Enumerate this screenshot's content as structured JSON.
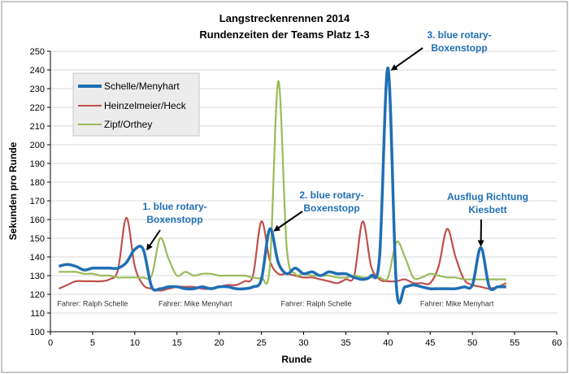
{
  "chart_data": {
    "type": "line",
    "title": "Langstreckenrennen 2014",
    "subtitle": "Rundenzeiten der Teams Platz 1-3",
    "xlabel": "Runde",
    "ylabel": "Sekunden pro Runde",
    "xlim": [
      0,
      60
    ],
    "ylim": [
      100,
      250
    ],
    "xticks": [
      0,
      5,
      10,
      15,
      20,
      25,
      30,
      35,
      40,
      45,
      50,
      55,
      60
    ],
    "yticks": [
      100,
      110,
      120,
      130,
      140,
      150,
      160,
      170,
      180,
      190,
      200,
      210,
      220,
      230,
      240,
      250
    ],
    "grid": "horizontal",
    "legend_position": "top-left",
    "series": [
      {
        "name": "Schelle/Menyhart",
        "color": "#1f6fb5",
        "x": [
          1,
          2,
          3,
          4,
          5,
          6,
          7,
          8,
          9,
          10,
          11,
          12,
          13,
          14,
          15,
          16,
          17,
          18,
          19,
          20,
          21,
          22,
          23,
          24,
          25,
          26,
          27,
          28,
          29,
          30,
          31,
          32,
          33,
          34,
          35,
          36,
          37,
          38,
          39,
          40,
          41,
          42,
          43,
          44,
          45,
          46,
          47,
          48,
          49,
          50,
          51,
          52,
          53,
          54
        ],
        "values": [
          135,
          136,
          135,
          133,
          134,
          134,
          134,
          134,
          137,
          144,
          144,
          124,
          123,
          124,
          124,
          123,
          123,
          124,
          123,
          124,
          124,
          123,
          123,
          124,
          128,
          155,
          137,
          131,
          134,
          131,
          132,
          130,
          132,
          131,
          131,
          129,
          128,
          130,
          140,
          241,
          124,
          124,
          125,
          124,
          123,
          123,
          123,
          123,
          124,
          125,
          145,
          124,
          124,
          124
        ]
      },
      {
        "name": "Heinzelmeier/Heck",
        "color": "#c0504d",
        "x": [
          1,
          2,
          3,
          4,
          5,
          6,
          7,
          8,
          9,
          10,
          11,
          12,
          13,
          14,
          15,
          16,
          17,
          18,
          19,
          20,
          21,
          22,
          23,
          24,
          25,
          26,
          27,
          28,
          29,
          30,
          31,
          32,
          33,
          34,
          35,
          36,
          37,
          38,
          39,
          40,
          41,
          42,
          43,
          44,
          45,
          46,
          47,
          48,
          49,
          50,
          51,
          52,
          53,
          54
        ],
        "values": [
          123,
          125,
          127,
          127,
          127,
          127,
          128,
          133,
          161,
          135,
          125,
          123,
          122,
          123,
          124,
          124,
          124,
          123,
          123,
          124,
          125,
          125,
          127,
          130,
          159,
          138,
          131,
          131,
          130,
          129,
          129,
          128,
          127,
          126,
          128,
          130,
          159,
          135,
          128,
          127,
          127,
          128,
          126,
          126,
          126,
          135,
          155,
          140,
          128,
          125,
          124,
          123,
          124,
          126
        ]
      },
      {
        "name": "Zipf/Orthey",
        "color": "#9bbb59",
        "x": [
          1,
          2,
          3,
          4,
          5,
          6,
          7,
          8,
          9,
          10,
          11,
          12,
          13,
          14,
          15,
          16,
          17,
          18,
          19,
          20,
          21,
          22,
          23,
          24,
          25,
          26,
          27,
          28,
          29,
          30,
          31,
          32,
          33,
          34,
          35,
          36,
          37,
          38,
          39,
          40,
          41,
          42,
          43,
          44,
          45,
          46,
          47,
          48,
          49,
          50,
          51,
          52,
          53,
          54
        ],
        "values": [
          132,
          132,
          132,
          131,
          131,
          130,
          130,
          129,
          129,
          129,
          129,
          130,
          150,
          139,
          130,
          132,
          130,
          131,
          131,
          130,
          130,
          130,
          130,
          129,
          129,
          135,
          234,
          145,
          131,
          131,
          130,
          130,
          130,
          129,
          129,
          130,
          129,
          129,
          129,
          129,
          148,
          140,
          129,
          129,
          131,
          130,
          129,
          129,
          128,
          128,
          128,
          128,
          128,
          128
        ]
      }
    ],
    "annotations": [
      {
        "line1": "1. blue rotary-",
        "line2": "Boxenstopp",
        "x": 11,
        "y": 145
      },
      {
        "line1": "2. blue rotary-",
        "line2": "Boxenstopp",
        "x": 26,
        "y": 155
      },
      {
        "line1": "3. blue rotary-",
        "line2": "Boxenstopp",
        "x": 40,
        "y": 241
      },
      {
        "line1": "Ausflug Richtung",
        "line2": "Kiesbett",
        "x": 51,
        "y": 145
      }
    ],
    "driver_labels": [
      {
        "text": "Fahrer: Ralph Schelle",
        "x": 1,
        "y": 115
      },
      {
        "text": "Fahrer: Mike Menyhart",
        "x": 13,
        "y": 115
      },
      {
        "text": "Fahrer: Ralph Schelle",
        "x": 27.5,
        "y": 115
      },
      {
        "text": "Fahrer: Mike Menyhart",
        "x": 44,
        "y": 115
      }
    ]
  }
}
